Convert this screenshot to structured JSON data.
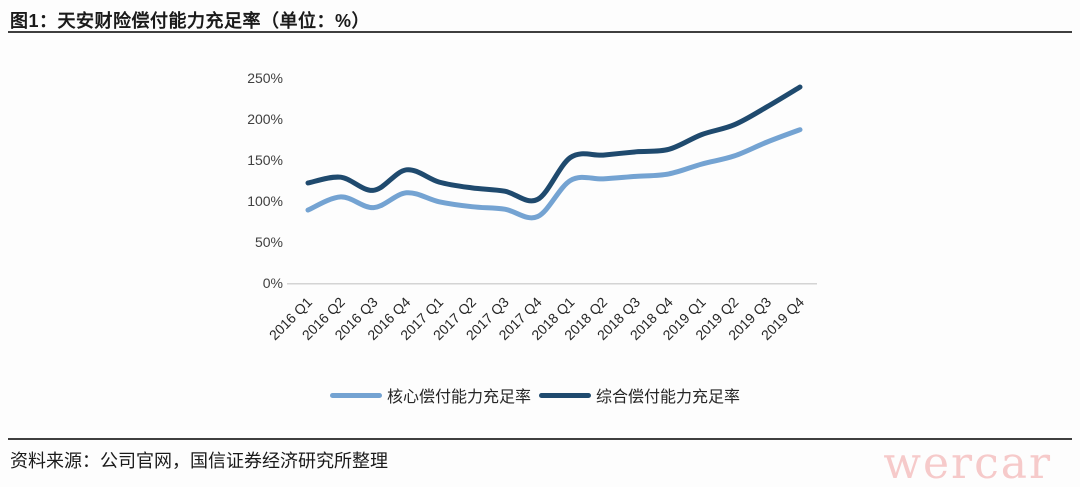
{
  "header": {
    "title": "图1：天安财险偿付能力充足率（单位：%）"
  },
  "footer": {
    "source": "资料来源：公司官网，国信证券经济研究所整理",
    "watermark": "wercar"
  },
  "colors": {
    "core_line": "#74a3d2",
    "comprehensive_line": "#1f4a6e",
    "axis_line": "#d4d4d4",
    "tick_text": "#404040",
    "xtick_text": "#262626",
    "rule": "#3f3f3f",
    "watermark": "#f6caca"
  },
  "chart_data": {
    "type": "line",
    "title": "图1：天安财险偿付能力充足率（单位：%）",
    "categories": [
      "2016 Q1",
      "2016 Q2",
      "2016 Q3",
      "2016 Q4",
      "2017 Q1",
      "2017 Q2",
      "2017 Q3",
      "2017 Q4",
      "2018 Q1",
      "2018 Q2",
      "2018 Q3",
      "2018 Q4",
      "2019 Q1",
      "2019 Q2",
      "2019 Q3",
      "2019 Q4"
    ],
    "series": [
      {
        "name": "核心偿付能力充足率",
        "color": "#74a3d2",
        "values": [
          89,
          105,
          92,
          110,
          99,
          93,
          90,
          81,
          125,
          127,
          130,
          133,
          145,
          155,
          172,
          187
        ]
      },
      {
        "name": "综合偿付能力充足率",
        "color": "#1f4a6e",
        "values": [
          122,
          129,
          113,
          138,
          123,
          116,
          112,
          102,
          153,
          156,
          160,
          163,
          181,
          193,
          215,
          239
        ]
      }
    ],
    "ylim": [
      0,
      250
    ],
    "yticks": [
      0,
      50,
      100,
      150,
      200,
      250
    ],
    "ytick_suffix": "%",
    "grid": false,
    "smooth": true,
    "legend_position": "bottom"
  },
  "legend": {
    "items": [
      {
        "label": "核心偿付能力充足率"
      },
      {
        "label": "综合偿付能力充足率"
      }
    ]
  }
}
